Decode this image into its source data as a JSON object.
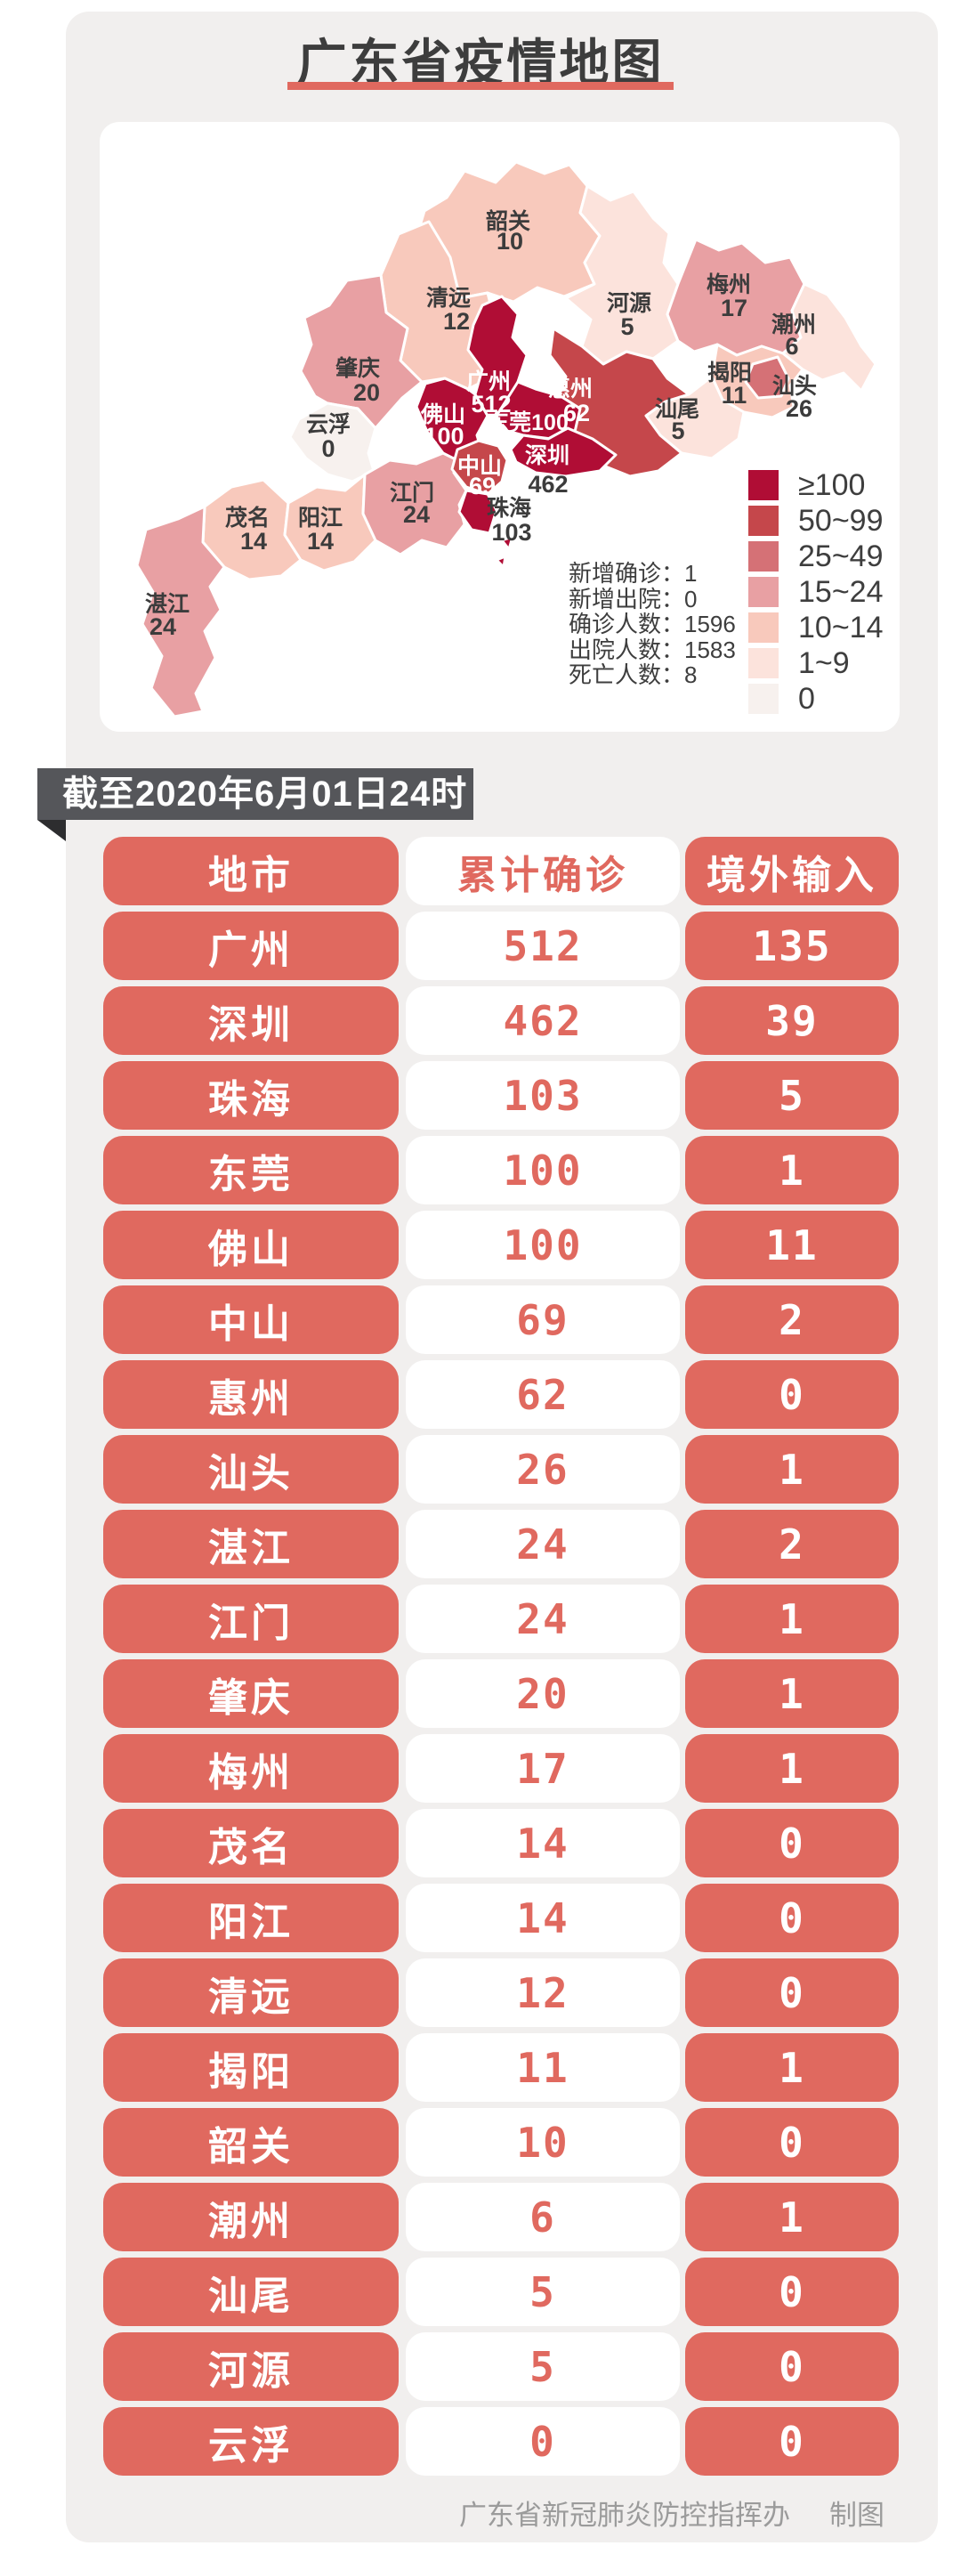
{
  "title": "广东省疫情地图",
  "banner": "截至2020年6月01日24时",
  "stats": [
    {
      "label": "新增确诊",
      "value": "1"
    },
    {
      "label": "新增出院",
      "value": "0"
    },
    {
      "label": "确诊人数",
      "value": "1596"
    },
    {
      "label": "出院人数",
      "value": "1583"
    },
    {
      "label": "死亡人数",
      "value": "8"
    }
  ],
  "legend": [
    {
      "label": "≥100",
      "color": "#b00d35",
      "min": 100
    },
    {
      "label": "50~99",
      "color": "#c5474b",
      "min": 50
    },
    {
      "label": "25~49",
      "color": "#d57176",
      "min": 25
    },
    {
      "label": "15~24",
      "color": "#e8a0a3",
      "min": 15
    },
    {
      "label": "10~14",
      "color": "#f8c9bc",
      "min": 10
    },
    {
      "label": "1~9",
      "color": "#fce3dc",
      "min": 1
    },
    {
      "label": "0",
      "color": "#f7f1ee",
      "min": 0
    }
  ],
  "map_cities": [
    {
      "id": "shaoguan",
      "name": "韶关",
      "value": 10
    },
    {
      "id": "qingyuan",
      "name": "清远",
      "value": 12
    },
    {
      "id": "heyuan",
      "name": "河源",
      "value": 5
    },
    {
      "id": "meizhou",
      "name": "梅州",
      "value": 17
    },
    {
      "id": "chaozhou",
      "name": "潮州",
      "value": 6
    },
    {
      "id": "jieyang",
      "name": "揭阳",
      "value": 11
    },
    {
      "id": "shantou",
      "name": "汕头",
      "value": 26
    },
    {
      "id": "shanwei",
      "name": "汕尾",
      "value": 5
    },
    {
      "id": "huizhou",
      "name": "惠州",
      "value": 62
    },
    {
      "id": "zhaoqing",
      "name": "肇庆",
      "value": 20
    },
    {
      "id": "yunfu",
      "name": "云浮",
      "value": 0
    },
    {
      "id": "guangzhou",
      "name": "广州",
      "value": 512
    },
    {
      "id": "foshan",
      "name": "佛山",
      "value": 100
    },
    {
      "id": "dongguan",
      "name": "东莞",
      "value": 100
    },
    {
      "id": "shenzhen",
      "name": "深圳",
      "value": 462
    },
    {
      "id": "zhongshan",
      "name": "中山",
      "value": 69
    },
    {
      "id": "zhuhai",
      "name": "珠海",
      "value": 103
    },
    {
      "id": "jiangmen",
      "name": "江门",
      "value": 24
    },
    {
      "id": "yangjiang",
      "name": "阳江",
      "value": 14
    },
    {
      "id": "maoming",
      "name": "茂名",
      "value": 14
    },
    {
      "id": "zhanjiang",
      "name": "湛江",
      "value": 24
    }
  ],
  "table": {
    "headers": [
      "地市",
      "累计确诊",
      "境外输入"
    ],
    "rows": [
      [
        "广州",
        "512",
        "135"
      ],
      [
        "深圳",
        "462",
        "39"
      ],
      [
        "珠海",
        "103",
        "5"
      ],
      [
        "东莞",
        "100",
        "1"
      ],
      [
        "佛山",
        "100",
        "11"
      ],
      [
        "中山",
        "69",
        "2"
      ],
      [
        "惠州",
        "62",
        "0"
      ],
      [
        "汕头",
        "26",
        "1"
      ],
      [
        "湛江",
        "24",
        "2"
      ],
      [
        "江门",
        "24",
        "1"
      ],
      [
        "肇庆",
        "20",
        "1"
      ],
      [
        "梅州",
        "17",
        "1"
      ],
      [
        "茂名",
        "14",
        "0"
      ],
      [
        "阳江",
        "14",
        "0"
      ],
      [
        "清远",
        "12",
        "0"
      ],
      [
        "揭阳",
        "11",
        "1"
      ],
      [
        "韶关",
        "10",
        "0"
      ],
      [
        "潮州",
        "6",
        "1"
      ],
      [
        "汕尾",
        "5",
        "0"
      ],
      [
        "河源",
        "5",
        "0"
      ],
      [
        "云浮",
        "0",
        "0"
      ]
    ]
  },
  "footer": {
    "credit": "广东省新冠肺炎防控指挥办",
    "suffix": "制图"
  },
  "colors": {
    "accent_red": "#e0695f",
    "ribbon_gray": "#55565a",
    "panel_gray": "#f1efee",
    "title_dark": "#3d3d3d",
    "map_label_dark": "#3c3c3c",
    "map_label_light": "#ffffff"
  },
  "chart_data": {
    "type": "heatmap",
    "subtype": "choropleth-map",
    "title": "广东省疫情地图",
    "as_of": "截至2020年6月01日24时",
    "categories": [
      "广州",
      "深圳",
      "珠海",
      "东莞",
      "佛山",
      "中山",
      "惠州",
      "汕头",
      "湛江",
      "江门",
      "肇庆",
      "梅州",
      "茂名",
      "阳江",
      "清远",
      "揭阳",
      "韶关",
      "潮州",
      "汕尾",
      "河源",
      "云浮"
    ],
    "series": [
      {
        "name": "累计确诊",
        "values": [
          512,
          462,
          103,
          100,
          100,
          69,
          62,
          26,
          24,
          24,
          20,
          17,
          14,
          14,
          12,
          11,
          10,
          6,
          5,
          5,
          0
        ]
      },
      {
        "name": "境外输入",
        "values": [
          135,
          39,
          5,
          1,
          11,
          2,
          0,
          1,
          2,
          1,
          1,
          1,
          0,
          0,
          0,
          1,
          0,
          1,
          0,
          0,
          0
        ]
      }
    ],
    "legend_bins": [
      "≥100",
      "50~99",
      "25~49",
      "15~24",
      "10~14",
      "1~9",
      "0"
    ],
    "legend_position": "right",
    "summary": {
      "新增确诊": 1,
      "新增出院": 0,
      "确诊人数": 1596,
      "出院人数": 1583,
      "死亡人数": 8
    }
  }
}
